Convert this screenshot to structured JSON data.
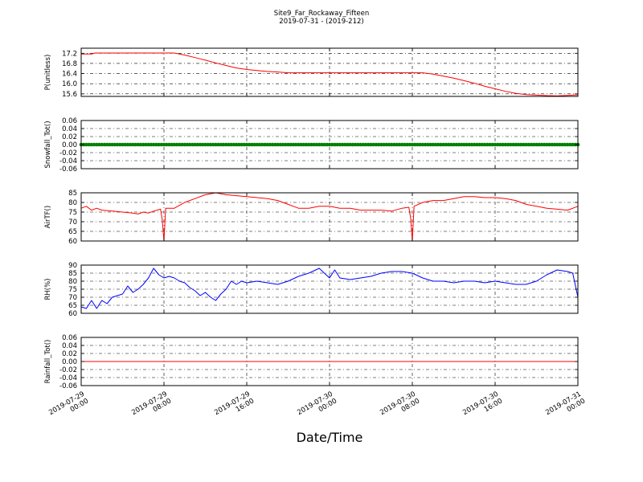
{
  "chart_data": {
    "type": "line",
    "title": "Site9_Far_Rockaway_Fifteen",
    "subtitle": "2019-07-31 - (2019-212)",
    "xlabel": "Date/Time",
    "xlim": [
      "2019-07-29 00:00",
      "2019-07-31 00:00"
    ],
    "x_ticks": [
      {
        "time": "2019-07-29 00:00",
        "line1": "2019-07-29",
        "line2": "00:00"
      },
      {
        "time": "2019-07-29 08:00",
        "line1": "2019-07-29",
        "line2": "08:00"
      },
      {
        "time": "2019-07-29 16:00",
        "line1": "2019-07-29",
        "line2": "16:00"
      },
      {
        "time": "2019-07-30 00:00",
        "line1": "2019-07-30",
        "line2": "00:00"
      },
      {
        "time": "2019-07-30 08:00",
        "line1": "2019-07-30",
        "line2": "08:00"
      },
      {
        "time": "2019-07-30 16:00",
        "line1": "2019-07-30",
        "line2": "16:00"
      },
      {
        "time": "2019-07-31 00:00",
        "line1": "2019-07-31",
        "line2": "00:00"
      }
    ],
    "grid": true,
    "panels": [
      {
        "ylabel": "P(unitless)",
        "ylim": [
          15.5,
          17.4
        ],
        "yticks": [
          15.6,
          16.0,
          16.4,
          16.8,
          17.2
        ],
        "tick_decimals": 1,
        "color": "#ff0000",
        "series": [
          {
            "x": "2019-07-29 00:00",
            "y": 17.17
          },
          {
            "x": "2019-07-29 01:00",
            "y": 17.17
          },
          {
            "x": "2019-07-29 01:20",
            "y": 17.21
          },
          {
            "x": "2019-07-29 02:00",
            "y": 17.21
          },
          {
            "x": "2019-07-29 03:00",
            "y": 17.21
          },
          {
            "x": "2019-07-29 04:00",
            "y": 17.21
          },
          {
            "x": "2019-07-29 05:00",
            "y": 17.21
          },
          {
            "x": "2019-07-29 06:00",
            "y": 17.21
          },
          {
            "x": "2019-07-29 07:00",
            "y": 17.21
          },
          {
            "x": "2019-07-29 08:00",
            "y": 17.21
          },
          {
            "x": "2019-07-29 09:00",
            "y": 17.21
          },
          {
            "x": "2019-07-29 10:00",
            "y": 17.13
          },
          {
            "x": "2019-07-29 11:00",
            "y": 17.03
          },
          {
            "x": "2019-07-29 12:00",
            "y": 16.93
          },
          {
            "x": "2019-07-29 13:00",
            "y": 16.82
          },
          {
            "x": "2019-07-29 14:00",
            "y": 16.72
          },
          {
            "x": "2019-07-29 15:00",
            "y": 16.62
          },
          {
            "x": "2019-07-29 16:00",
            "y": 16.56
          },
          {
            "x": "2019-07-29 17:00",
            "y": 16.52
          },
          {
            "x": "2019-07-29 18:00",
            "y": 16.48
          },
          {
            "x": "2019-07-29 19:00",
            "y": 16.46
          },
          {
            "x": "2019-07-29 20:00",
            "y": 16.43
          },
          {
            "x": "2019-07-29 21:00",
            "y": 16.43
          },
          {
            "x": "2019-07-29 22:00",
            "y": 16.43
          },
          {
            "x": "2019-07-30 00:00",
            "y": 16.43
          },
          {
            "x": "2019-07-30 02:00",
            "y": 16.43
          },
          {
            "x": "2019-07-30 04:00",
            "y": 16.43
          },
          {
            "x": "2019-07-30 06:00",
            "y": 16.43
          },
          {
            "x": "2019-07-30 08:00",
            "y": 16.43
          },
          {
            "x": "2019-07-30 09:00",
            "y": 16.43
          },
          {
            "x": "2019-07-30 10:00",
            "y": 16.38
          },
          {
            "x": "2019-07-30 11:00",
            "y": 16.3
          },
          {
            "x": "2019-07-30 12:00",
            "y": 16.22
          },
          {
            "x": "2019-07-30 13:00",
            "y": 16.12
          },
          {
            "x": "2019-07-30 14:00",
            "y": 16.02
          },
          {
            "x": "2019-07-30 15:00",
            "y": 15.9
          },
          {
            "x": "2019-07-30 16:00",
            "y": 15.8
          },
          {
            "x": "2019-07-30 17:00",
            "y": 15.7
          },
          {
            "x": "2019-07-30 18:00",
            "y": 15.62
          },
          {
            "x": "2019-07-30 19:00",
            "y": 15.57
          },
          {
            "x": "2019-07-30 20:00",
            "y": 15.55
          },
          {
            "x": "2019-07-30 21:00",
            "y": 15.53
          },
          {
            "x": "2019-07-30 22:00",
            "y": 15.52
          },
          {
            "x": "2019-07-30 23:00",
            "y": 15.54
          },
          {
            "x": "2019-07-31 00:00",
            "y": 15.56
          }
        ]
      },
      {
        "ylabel": "Snowfall_Tot()",
        "ylim": [
          -0.06,
          0.06
        ],
        "yticks": [
          -0.06,
          -0.04,
          -0.02,
          0.0,
          0.02,
          0.04,
          0.06
        ],
        "tick_decimals": 2,
        "color": "#008000",
        "style": "markers",
        "constant": 0,
        "points": 193
      },
      {
        "ylabel": "AirTF()",
        "ylim": [
          60,
          85
        ],
        "yticks": [
          60,
          65,
          70,
          75,
          80,
          85
        ],
        "tick_decimals": 0,
        "color": "#ff0000",
        "series": [
          {
            "x": "2019-07-29 00:00",
            "y": 77
          },
          {
            "x": "2019-07-29 00:30",
            "y": 78
          },
          {
            "x": "2019-07-29 01:00",
            "y": 76
          },
          {
            "x": "2019-07-29 01:30",
            "y": 77
          },
          {
            "x": "2019-07-29 02:00",
            "y": 76
          },
          {
            "x": "2019-07-29 03:00",
            "y": 75.5
          },
          {
            "x": "2019-07-29 04:00",
            "y": 75
          },
          {
            "x": "2019-07-29 05:00",
            "y": 74.5
          },
          {
            "x": "2019-07-29 05:30",
            "y": 74
          },
          {
            "x": "2019-07-29 06:00",
            "y": 75
          },
          {
            "x": "2019-07-29 06:30",
            "y": 74.5
          },
          {
            "x": "2019-07-29 07:00",
            "y": 75.5
          },
          {
            "x": "2019-07-29 07:40",
            "y": 76.5
          },
          {
            "x": "2019-07-29 07:50",
            "y": 71
          },
          {
            "x": "2019-07-29 08:00",
            "y": 60
          },
          {
            "x": "2019-07-29 08:10",
            "y": 77
          },
          {
            "x": "2019-07-29 09:00",
            "y": 77
          },
          {
            "x": "2019-07-29 10:00",
            "y": 80
          },
          {
            "x": "2019-07-29 11:00",
            "y": 82
          },
          {
            "x": "2019-07-29 12:00",
            "y": 84
          },
          {
            "x": "2019-07-29 12:30",
            "y": 84.5
          },
          {
            "x": "2019-07-29 13:00",
            "y": 85
          },
          {
            "x": "2019-07-29 14:00",
            "y": 84
          },
          {
            "x": "2019-07-29 15:00",
            "y": 83.5
          },
          {
            "x": "2019-07-29 16:00",
            "y": 83
          },
          {
            "x": "2019-07-29 17:00",
            "y": 82.5
          },
          {
            "x": "2019-07-29 18:00",
            "y": 82
          },
          {
            "x": "2019-07-29 19:00",
            "y": 81
          },
          {
            "x": "2019-07-29 20:00",
            "y": 79
          },
          {
            "x": "2019-07-29 21:00",
            "y": 77
          },
          {
            "x": "2019-07-29 22:00",
            "y": 77
          },
          {
            "x": "2019-07-29 23:00",
            "y": 78
          },
          {
            "x": "2019-07-30 00:00",
            "y": 78
          },
          {
            "x": "2019-07-30 01:00",
            "y": 77
          },
          {
            "x": "2019-07-30 02:00",
            "y": 77
          },
          {
            "x": "2019-07-30 03:00",
            "y": 76
          },
          {
            "x": "2019-07-30 04:00",
            "y": 76
          },
          {
            "x": "2019-07-30 05:00",
            "y": 76
          },
          {
            "x": "2019-07-30 06:00",
            "y": 75.5
          },
          {
            "x": "2019-07-30 07:00",
            "y": 77
          },
          {
            "x": "2019-07-30 07:40",
            "y": 77.5
          },
          {
            "x": "2019-07-30 07:50",
            "y": 72
          },
          {
            "x": "2019-07-30 08:00",
            "y": 60
          },
          {
            "x": "2019-07-30 08:10",
            "y": 78
          },
          {
            "x": "2019-07-30 09:00",
            "y": 80
          },
          {
            "x": "2019-07-30 10:00",
            "y": 81
          },
          {
            "x": "2019-07-30 11:00",
            "y": 81
          },
          {
            "x": "2019-07-30 12:00",
            "y": 82
          },
          {
            "x": "2019-07-30 13:00",
            "y": 83
          },
          {
            "x": "2019-07-30 14:00",
            "y": 83
          },
          {
            "x": "2019-07-30 15:00",
            "y": 82.5
          },
          {
            "x": "2019-07-30 16:00",
            "y": 82.5
          },
          {
            "x": "2019-07-30 17:00",
            "y": 82
          },
          {
            "x": "2019-07-30 18:00",
            "y": 81
          },
          {
            "x": "2019-07-30 19:00",
            "y": 79
          },
          {
            "x": "2019-07-30 20:00",
            "y": 78
          },
          {
            "x": "2019-07-30 21:00",
            "y": 77
          },
          {
            "x": "2019-07-30 22:00",
            "y": 76.5
          },
          {
            "x": "2019-07-30 23:00",
            "y": 76
          },
          {
            "x": "2019-07-31 00:00",
            "y": 78
          }
        ]
      },
      {
        "ylabel": "RH(%)",
        "ylim": [
          60,
          90
        ],
        "yticks": [
          60,
          65,
          70,
          75,
          80,
          85,
          90
        ],
        "tick_decimals": 0,
        "color": "#0000ff",
        "series": [
          {
            "x": "2019-07-29 00:00",
            "y": 64
          },
          {
            "x": "2019-07-29 00:30",
            "y": 63
          },
          {
            "x": "2019-07-29 01:00",
            "y": 68
          },
          {
            "x": "2019-07-29 01:30",
            "y": 63
          },
          {
            "x": "2019-07-29 02:00",
            "y": 68
          },
          {
            "x": "2019-07-29 02:30",
            "y": 66
          },
          {
            "x": "2019-07-29 03:00",
            "y": 70
          },
          {
            "x": "2019-07-29 03:30",
            "y": 71
          },
          {
            "x": "2019-07-29 04:00",
            "y": 72
          },
          {
            "x": "2019-07-29 04:30",
            "y": 77
          },
          {
            "x": "2019-07-29 05:00",
            "y": 73
          },
          {
            "x": "2019-07-29 05:30",
            "y": 75
          },
          {
            "x": "2019-07-29 06:00",
            "y": 78
          },
          {
            "x": "2019-07-29 06:30",
            "y": 82
          },
          {
            "x": "2019-07-29 07:00",
            "y": 88
          },
          {
            "x": "2019-07-29 07:30",
            "y": 84
          },
          {
            "x": "2019-07-29 08:00",
            "y": 82
          },
          {
            "x": "2019-07-29 08:30",
            "y": 83
          },
          {
            "x": "2019-07-29 09:00",
            "y": 82
          },
          {
            "x": "2019-07-29 09:30",
            "y": 80
          },
          {
            "x": "2019-07-29 10:00",
            "y": 79
          },
          {
            "x": "2019-07-29 10:30",
            "y": 76
          },
          {
            "x": "2019-07-29 11:00",
            "y": 74
          },
          {
            "x": "2019-07-29 11:30",
            "y": 71
          },
          {
            "x": "2019-07-29 12:00",
            "y": 73
          },
          {
            "x": "2019-07-29 12:30",
            "y": 70
          },
          {
            "x": "2019-07-29 13:00",
            "y": 68
          },
          {
            "x": "2019-07-29 13:30",
            "y": 72
          },
          {
            "x": "2019-07-29 14:00",
            "y": 75
          },
          {
            "x": "2019-07-29 14:30",
            "y": 80
          },
          {
            "x": "2019-07-29 15:00",
            "y": 78
          },
          {
            "x": "2019-07-29 15:30",
            "y": 80
          },
          {
            "x": "2019-07-29 16:00",
            "y": 79
          },
          {
            "x": "2019-07-29 17:00",
            "y": 80
          },
          {
            "x": "2019-07-29 18:00",
            "y": 79
          },
          {
            "x": "2019-07-29 19:00",
            "y": 78
          },
          {
            "x": "2019-07-29 20:00",
            "y": 80
          },
          {
            "x": "2019-07-29 21:00",
            "y": 83
          },
          {
            "x": "2019-07-29 22:00",
            "y": 85
          },
          {
            "x": "2019-07-29 23:00",
            "y": 88
          },
          {
            "x": "2019-07-30 00:00",
            "y": 82
          },
          {
            "x": "2019-07-30 00:30",
            "y": 87
          },
          {
            "x": "2019-07-30 01:00",
            "y": 82
          },
          {
            "x": "2019-07-30 02:00",
            "y": 81
          },
          {
            "x": "2019-07-30 03:00",
            "y": 82
          },
          {
            "x": "2019-07-30 04:00",
            "y": 83
          },
          {
            "x": "2019-07-30 05:00",
            "y": 85
          },
          {
            "x": "2019-07-30 06:00",
            "y": 86
          },
          {
            "x": "2019-07-30 07:00",
            "y": 86
          },
          {
            "x": "2019-07-30 08:00",
            "y": 85
          },
          {
            "x": "2019-07-30 09:00",
            "y": 82
          },
          {
            "x": "2019-07-30 10:00",
            "y": 80
          },
          {
            "x": "2019-07-30 11:00",
            "y": 80
          },
          {
            "x": "2019-07-30 12:00",
            "y": 79
          },
          {
            "x": "2019-07-30 13:00",
            "y": 80
          },
          {
            "x": "2019-07-30 14:00",
            "y": 80
          },
          {
            "x": "2019-07-30 15:00",
            "y": 79
          },
          {
            "x": "2019-07-30 16:00",
            "y": 80
          },
          {
            "x": "2019-07-30 17:00",
            "y": 79
          },
          {
            "x": "2019-07-30 18:00",
            "y": 78
          },
          {
            "x": "2019-07-30 19:00",
            "y": 78
          },
          {
            "x": "2019-07-30 20:00",
            "y": 80
          },
          {
            "x": "2019-07-30 21:00",
            "y": 84
          },
          {
            "x": "2019-07-30 22:00",
            "y": 87
          },
          {
            "x": "2019-07-30 23:00",
            "y": 86
          },
          {
            "x": "2019-07-30 23:30",
            "y": 85
          },
          {
            "x": "2019-07-31 00:00",
            "y": 70
          }
        ]
      },
      {
        "ylabel": "Rainfall_Tot()",
        "ylim": [
          -0.06,
          0.06
        ],
        "yticks": [
          -0.06,
          -0.04,
          -0.02,
          0.0,
          0.02,
          0.04,
          0.06
        ],
        "tick_decimals": 2,
        "color": "#ff0000",
        "series": [
          {
            "x": "2019-07-29 00:00",
            "y": 0
          },
          {
            "x": "2019-07-31 00:00",
            "y": 0
          }
        ]
      }
    ]
  }
}
